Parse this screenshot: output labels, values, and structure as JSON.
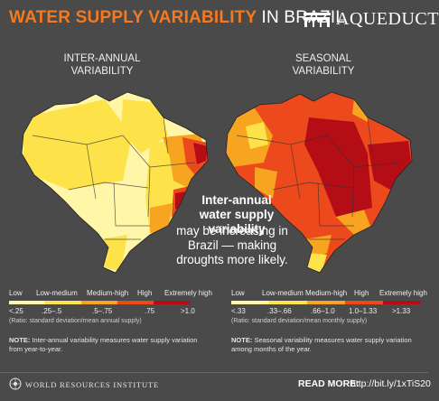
{
  "title": {
    "main": "WATER SUPPLY VARIABILITY",
    "tail": "IN BRAZIL"
  },
  "logo": {
    "text": "AQUEDUCT",
    "icon": "aqueduct-arches-icon"
  },
  "maps": [
    {
      "heading": "INTER-ANNUAL\nVARIABILITY"
    },
    {
      "heading": "SEASONAL\nVARIABILITY"
    }
  ],
  "callout": {
    "bold": "Inter-annual water supply variability",
    "rest": "may be increasing in Brazil — making droughts more likely."
  },
  "legend_classes": [
    "Low",
    "Low-medium",
    "Medium-high",
    "High",
    "Extremely high"
  ],
  "colors": {
    "low": "#fff6a8",
    "low_medium": "#fde24a",
    "medium_high": "#f7a521",
    "high": "#ec4a1c",
    "extremely_high": "#b50d16",
    "accent": "#f47920",
    "background": "#4a4a4a"
  },
  "legend_left": {
    "ticks": [
      "<.25",
      ".25–.5",
      ".5–.75",
      ".75",
      ">1.0"
    ],
    "ratio": "(Ratio: standard deviation/mean annual supply)"
  },
  "legend_right": {
    "ticks": [
      "<.33",
      ".33–.66",
      ".66–1.0",
      "1.0–1.33",
      ">1.33"
    ],
    "ratio": "(Ratio: standard deviation/mean monthly supply)"
  },
  "notes": [
    {
      "label": "NOTE:",
      "text": "Inter-annual variability measures water supply variation from year-to-year."
    },
    {
      "label": "NOTE:",
      "text": "Seasonal variability measures water supply variation among months of the year."
    }
  ],
  "footer": {
    "org": "WORLD RESOURCES INSTITUTE",
    "read_more_label": "READ MORE:",
    "link": "http://bit.ly/1xTiS20"
  }
}
